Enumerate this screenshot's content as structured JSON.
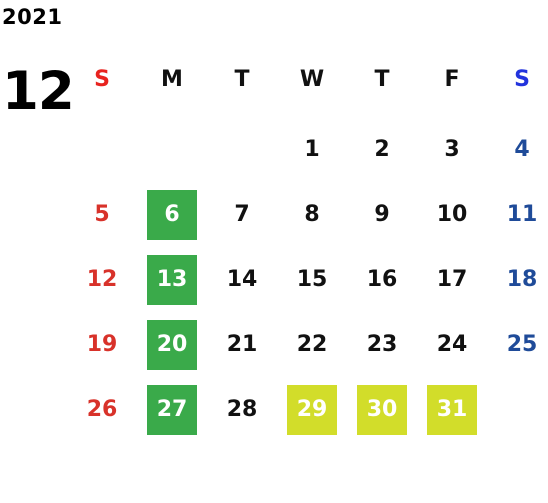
{
  "calendar": {
    "year": "2021",
    "month": "12"
  },
  "weekdays": [
    "S",
    "M",
    "T",
    "W",
    "T",
    "F",
    "S"
  ],
  "weeks": [
    [
      "",
      "",
      "",
      "1",
      "2",
      "3",
      "4"
    ],
    [
      "5",
      "6",
      "7",
      "8",
      "9",
      "10",
      "11"
    ],
    [
      "12",
      "13",
      "14",
      "15",
      "16",
      "17",
      "18"
    ],
    [
      "19",
      "20",
      "21",
      "22",
      "23",
      "24",
      "25"
    ],
    [
      "26",
      "27",
      "28",
      "29",
      "30",
      "31",
      ""
    ]
  ],
  "highlights": {
    "green": [
      "6",
      "13",
      "20",
      "27"
    ],
    "yellow": [
      "29",
      "30",
      "31"
    ]
  },
  "colors": {
    "weekday_header": "#111111",
    "sunday_header": "#e8231f",
    "saturday_header": "#2233dd",
    "sunday_date": "#d8322a",
    "saturday_date": "#1f4b99",
    "weekday_date": "#111111",
    "green_box": "#3aaa4a",
    "yellow_box": "#d2dd2a",
    "highlight_text": "#ffffff"
  }
}
